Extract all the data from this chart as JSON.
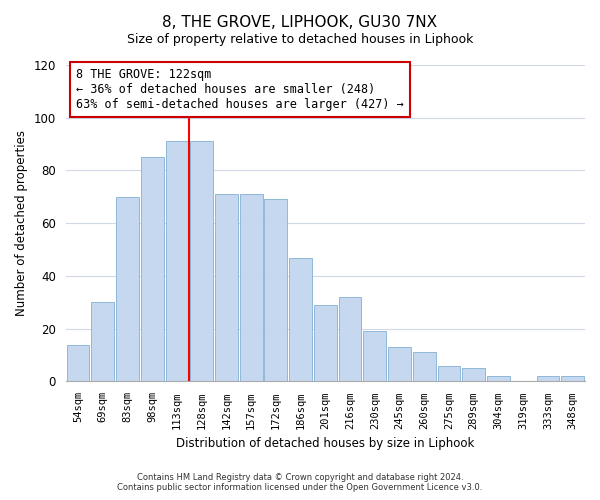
{
  "title": "8, THE GROVE, LIPHOOK, GU30 7NX",
  "subtitle": "Size of property relative to detached houses in Liphook",
  "xlabel": "Distribution of detached houses by size in Liphook",
  "ylabel": "Number of detached properties",
  "bar_labels": [
    "54sqm",
    "69sqm",
    "83sqm",
    "98sqm",
    "113sqm",
    "128sqm",
    "142sqm",
    "157sqm",
    "172sqm",
    "186sqm",
    "201sqm",
    "216sqm",
    "230sqm",
    "245sqm",
    "260sqm",
    "275sqm",
    "289sqm",
    "304sqm",
    "319sqm",
    "333sqm",
    "348sqm"
  ],
  "bar_values": [
    14,
    30,
    70,
    85,
    91,
    91,
    71,
    71,
    69,
    47,
    29,
    32,
    19,
    13,
    11,
    6,
    5,
    2,
    0,
    2,
    2
  ],
  "bar_color": "#c5d8ef",
  "bar_edge_color": "#8fb8d8",
  "vline_index": 5,
  "vline_label": "8 THE GROVE: 122sqm",
  "annotation_line1": "← 36% of detached houses are smaller (248)",
  "annotation_line2": "63% of semi-detached houses are larger (427) →",
  "ylim": [
    0,
    120
  ],
  "yticks": [
    0,
    20,
    40,
    60,
    80,
    100,
    120
  ],
  "footer1": "Contains HM Land Registry data © Crown copyright and database right 2024.",
  "footer2": "Contains public sector information licensed under the Open Government Licence v3.0.",
  "bg_color": "#ffffff",
  "plot_bg_color": "#ffffff",
  "grid_color": "#d0d8e8"
}
